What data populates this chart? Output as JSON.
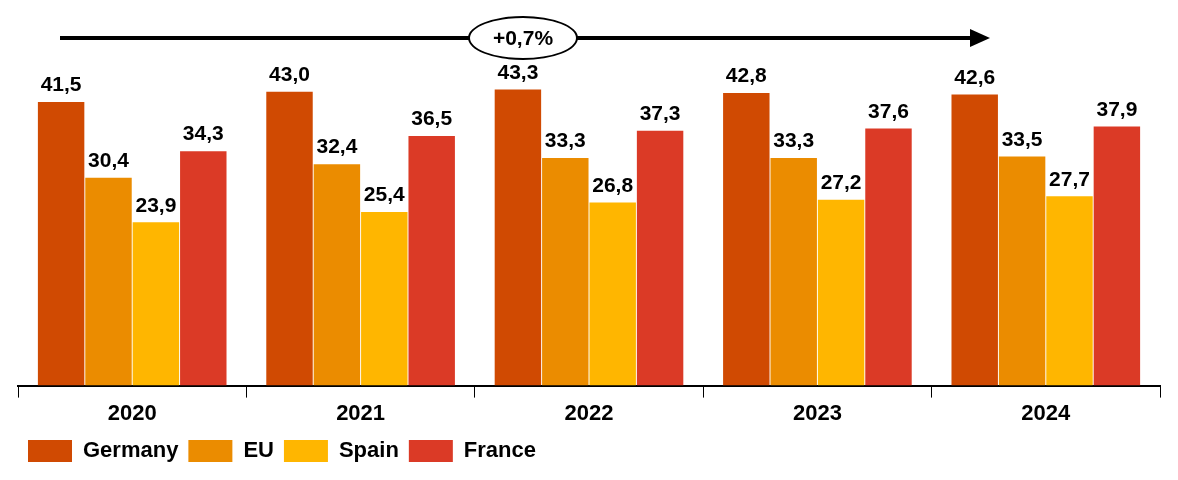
{
  "chart_data": {
    "type": "bar",
    "categories": [
      "2020",
      "2021",
      "2022",
      "2023",
      "2024"
    ],
    "series": [
      {
        "name": "Germany",
        "color": "#d04a02",
        "values": [
          41.5,
          43.0,
          43.3,
          42.8,
          42.6
        ],
        "value_labels": [
          "41,5",
          "43,0",
          "43,3",
          "42,8",
          "42,6"
        ]
      },
      {
        "name": "EU",
        "color": "#eb8c00",
        "values": [
          30.4,
          32.4,
          33.3,
          33.3,
          33.5
        ],
        "value_labels": [
          "30,4",
          "32,4",
          "33,3",
          "33,3",
          "33,5"
        ]
      },
      {
        "name": "Spain",
        "color": "#ffb600",
        "values": [
          23.9,
          25.4,
          26.8,
          27.2,
          27.7
        ],
        "value_labels": [
          "23,9",
          "25,4",
          "26,8",
          "27,2",
          "27,7"
        ]
      },
      {
        "name": "France",
        "color": "#db3a26",
        "values": [
          34.3,
          36.5,
          37.3,
          37.6,
          37.9
        ],
        "value_labels": [
          "34,3",
          "36,5",
          "37,3",
          "37,6",
          "37,9"
        ]
      }
    ],
    "annotations": [
      "+0,7%"
    ],
    "legend": "bottom left",
    "grid": false
  }
}
